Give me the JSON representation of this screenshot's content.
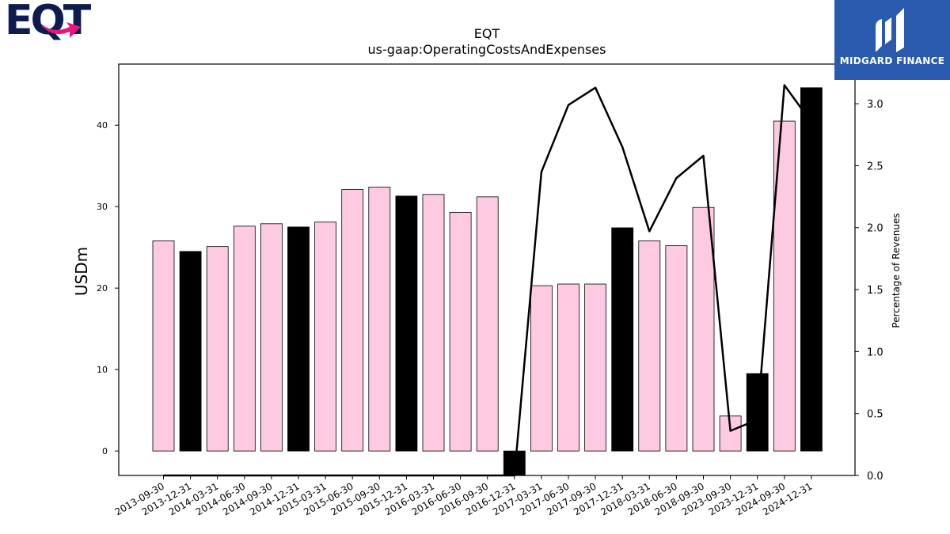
{
  "logos": {
    "left_text": "EQT",
    "right_text": "MIDGARD FINANCE"
  },
  "colors": {
    "bar_light": "#fdcae1",
    "bar_dark": "#000000",
    "line": "#000000",
    "logo_navy": "#0d1b4f",
    "logo_pink": "#e8157c",
    "midgard_blue": "#2a5aad"
  },
  "chart_data": {
    "type": "bar",
    "title": "EQT",
    "subtitle": "us-gaap:OperatingCostsAndExpenses",
    "ylabel": "USDm",
    "y2label": "Percentage of Revenues",
    "ylim": [
      -3,
      47.5
    ],
    "y2lim": [
      0,
      3.32
    ],
    "yticks": [
      0,
      10,
      20,
      30,
      40
    ],
    "y2ticks": [
      "0.0",
      "0.5",
      "1.0",
      "1.5",
      "2.0",
      "2.5",
      "3.0"
    ],
    "categories": [
      "2013-09-30",
      "2013-12-31",
      "2014-03-31",
      "2014-06-30",
      "2014-09-30",
      "2014-12-31",
      "2015-03-31",
      "2015-06-30",
      "2015-09-30",
      "2015-12-31",
      "2016-03-31",
      "2016-06-30",
      "2016-09-30",
      "2016-12-31",
      "2017-03-31",
      "2017-06-30",
      "2017-09-30",
      "2017-12-31",
      "2018-03-31",
      "2018-06-30",
      "2018-09-30",
      "2023-09-30",
      "2023-12-31",
      "2024-09-30",
      "2024-12-31"
    ],
    "series": [
      {
        "values": [
          25.8,
          24.5,
          25.1,
          27.6,
          27.9,
          27.5,
          28.1,
          32.1,
          32.4,
          31.3,
          31.5,
          29.3,
          31.2,
          -3.0,
          20.3,
          20.5,
          20.5,
          27.4,
          25.8,
          25.2,
          29.9,
          4.3,
          9.5,
          40.5,
          44.6
        ],
        "highlight": [
          false,
          true,
          false,
          false,
          false,
          true,
          false,
          false,
          false,
          true,
          false,
          false,
          false,
          true,
          false,
          false,
          false,
          true,
          false,
          false,
          false,
          false,
          true,
          false,
          true
        ]
      },
      {
        "axis": "right",
        "type": "line",
        "values": [
          0.0,
          0.0,
          0.0,
          0.0,
          0.0,
          0.0,
          0.0,
          0.0,
          0.0,
          0.0,
          0.0,
          0.0,
          0.0,
          0.0,
          2.45,
          2.99,
          3.13,
          2.65,
          1.97,
          2.4,
          2.58,
          0.36,
          0.45,
          3.15,
          2.85
        ]
      }
    ],
    "grid": false
  }
}
